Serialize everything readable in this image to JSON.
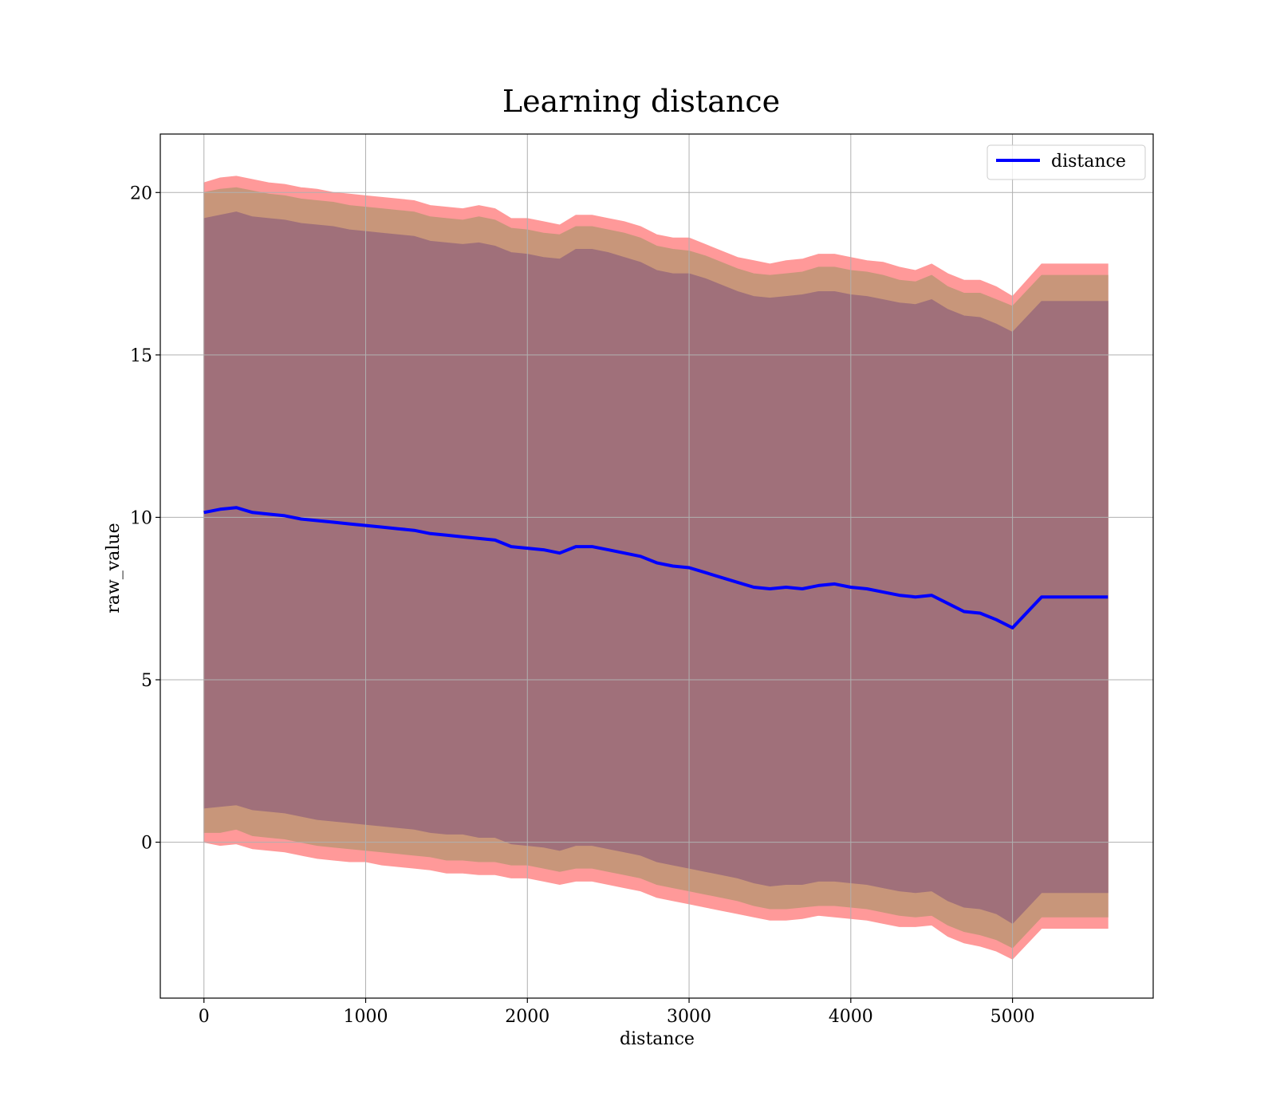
{
  "chart_data": {
    "type": "line",
    "title": "Learning distance",
    "xlabel": "distance",
    "ylabel": "raw_value",
    "xlim": [
      -270,
      5870
    ],
    "ylim": [
      -4.8,
      21.8
    ],
    "xticks": [
      0,
      1000,
      2000,
      3000,
      4000,
      5000
    ],
    "yticks": [
      0,
      5,
      10,
      15,
      20
    ],
    "grid": true,
    "legend": {
      "location": "upper-right",
      "entries": [
        "distance"
      ]
    },
    "colors": {
      "line": "#0000ff",
      "band_outer": "#ff9999",
      "band_middle": "#c8967a",
      "band_inner": "#a0707a",
      "grid": "#b0b0b0"
    },
    "series": [
      {
        "name": "distance",
        "x": [
          0,
          100,
          200,
          300,
          400,
          500,
          600,
          700,
          800,
          900,
          1000,
          1100,
          1200,
          1300,
          1400,
          1500,
          1600,
          1700,
          1800,
          1900,
          2000,
          2100,
          2200,
          2300,
          2400,
          2500,
          2600,
          2700,
          2800,
          2900,
          3000,
          3100,
          3200,
          3300,
          3400,
          3500,
          3600,
          3700,
          3800,
          3900,
          4000,
          4100,
          4200,
          4300,
          4400,
          4500,
          4600,
          4700,
          4800,
          4900,
          5000,
          5180,
          5590
        ],
        "y": [
          10.15,
          10.25,
          10.3,
          10.15,
          10.1,
          10.05,
          9.95,
          9.9,
          9.85,
          9.8,
          9.75,
          9.7,
          9.65,
          9.6,
          9.5,
          9.45,
          9.4,
          9.35,
          9.3,
          9.1,
          9.05,
          9.0,
          8.9,
          9.1,
          9.1,
          9.0,
          8.9,
          8.8,
          8.6,
          8.5,
          8.45,
          8.3,
          8.15,
          8.0,
          7.85,
          7.8,
          7.85,
          7.8,
          7.9,
          7.95,
          7.85,
          7.8,
          7.7,
          7.6,
          7.55,
          7.6,
          7.35,
          7.1,
          7.05,
          6.85,
          6.6,
          7.55,
          7.55
        ]
      }
    ],
    "bands": [
      {
        "color": "band_outer",
        "lower": [
          0.0,
          -0.1,
          -0.05,
          -0.2,
          -0.25,
          -0.3,
          -0.4,
          -0.5,
          -0.55,
          -0.6,
          -0.6,
          -0.7,
          -0.75,
          -0.8,
          -0.85,
          -0.95,
          -0.95,
          -1.0,
          -1.0,
          -1.1,
          -1.1,
          -1.2,
          -1.3,
          -1.2,
          -1.2,
          -1.3,
          -1.4,
          -1.5,
          -1.7,
          -1.8,
          -1.9,
          -2.0,
          -2.1,
          -2.2,
          -2.3,
          -2.4,
          -2.4,
          -2.35,
          -2.25,
          -2.3,
          -2.35,
          -2.4,
          -2.5,
          -2.6,
          -2.6,
          -2.55,
          -2.9,
          -3.1,
          -3.2,
          -3.35,
          -3.6,
          -2.65,
          -2.65
        ],
        "upper": [
          20.3,
          20.45,
          20.5,
          20.4,
          20.3,
          20.25,
          20.15,
          20.1,
          20.0,
          19.95,
          19.9,
          19.85,
          19.8,
          19.75,
          19.6,
          19.55,
          19.5,
          19.6,
          19.5,
          19.2,
          19.2,
          19.1,
          19.0,
          19.3,
          19.3,
          19.2,
          19.1,
          18.95,
          18.7,
          18.6,
          18.6,
          18.4,
          18.2,
          18.0,
          17.9,
          17.8,
          17.9,
          17.95,
          18.1,
          18.1,
          18.0,
          17.9,
          17.85,
          17.7,
          17.6,
          17.8,
          17.5,
          17.3,
          17.3,
          17.1,
          16.8,
          17.8,
          17.8
        ]
      },
      {
        "color": "band_middle",
        "lower": [
          0.3,
          0.3,
          0.4,
          0.2,
          0.15,
          0.1,
          0.0,
          -0.1,
          -0.15,
          -0.2,
          -0.25,
          -0.3,
          -0.35,
          -0.4,
          -0.45,
          -0.55,
          -0.55,
          -0.6,
          -0.6,
          -0.7,
          -0.7,
          -0.8,
          -0.9,
          -0.8,
          -0.8,
          -0.9,
          -1.0,
          -1.1,
          -1.3,
          -1.4,
          -1.5,
          -1.6,
          -1.7,
          -1.8,
          -1.95,
          -2.05,
          -2.05,
          -2.0,
          -1.95,
          -1.95,
          -2.0,
          -2.05,
          -2.15,
          -2.25,
          -2.3,
          -2.25,
          -2.55,
          -2.75,
          -2.85,
          -3.0,
          -3.25,
          -2.3,
          -2.3
        ],
        "upper": [
          20.0,
          20.1,
          20.15,
          20.05,
          19.95,
          19.9,
          19.8,
          19.75,
          19.7,
          19.6,
          19.55,
          19.5,
          19.45,
          19.4,
          19.25,
          19.2,
          19.15,
          19.25,
          19.15,
          18.9,
          18.85,
          18.75,
          18.7,
          18.95,
          18.95,
          18.85,
          18.75,
          18.6,
          18.35,
          18.25,
          18.2,
          18.05,
          17.85,
          17.65,
          17.5,
          17.45,
          17.5,
          17.55,
          17.7,
          17.7,
          17.6,
          17.55,
          17.45,
          17.3,
          17.25,
          17.45,
          17.1,
          16.9,
          16.9,
          16.7,
          16.5,
          17.45,
          17.45
        ]
      },
      {
        "color": "band_inner",
        "lower": [
          1.05,
          1.1,
          1.15,
          1.0,
          0.95,
          0.9,
          0.8,
          0.7,
          0.65,
          0.6,
          0.55,
          0.5,
          0.45,
          0.4,
          0.3,
          0.25,
          0.25,
          0.15,
          0.15,
          -0.05,
          -0.1,
          -0.15,
          -0.25,
          -0.1,
          -0.1,
          -0.2,
          -0.3,
          -0.4,
          -0.6,
          -0.7,
          -0.8,
          -0.9,
          -1.0,
          -1.1,
          -1.25,
          -1.35,
          -1.3,
          -1.3,
          -1.2,
          -1.2,
          -1.25,
          -1.3,
          -1.4,
          -1.5,
          -1.55,
          -1.5,
          -1.8,
          -2.0,
          -2.05,
          -2.2,
          -2.5,
          -1.55,
          -1.55
        ],
        "upper": [
          19.2,
          19.3,
          19.4,
          19.25,
          19.2,
          19.15,
          19.05,
          19.0,
          18.95,
          18.85,
          18.8,
          18.75,
          18.7,
          18.65,
          18.5,
          18.45,
          18.4,
          18.45,
          18.35,
          18.15,
          18.1,
          18.0,
          17.95,
          18.25,
          18.25,
          18.15,
          18.0,
          17.85,
          17.6,
          17.5,
          17.5,
          17.35,
          17.15,
          16.95,
          16.8,
          16.75,
          16.8,
          16.85,
          16.95,
          16.95,
          16.85,
          16.8,
          16.7,
          16.6,
          16.55,
          16.7,
          16.4,
          16.2,
          16.15,
          15.95,
          15.7,
          16.65,
          16.65
        ]
      }
    ]
  }
}
